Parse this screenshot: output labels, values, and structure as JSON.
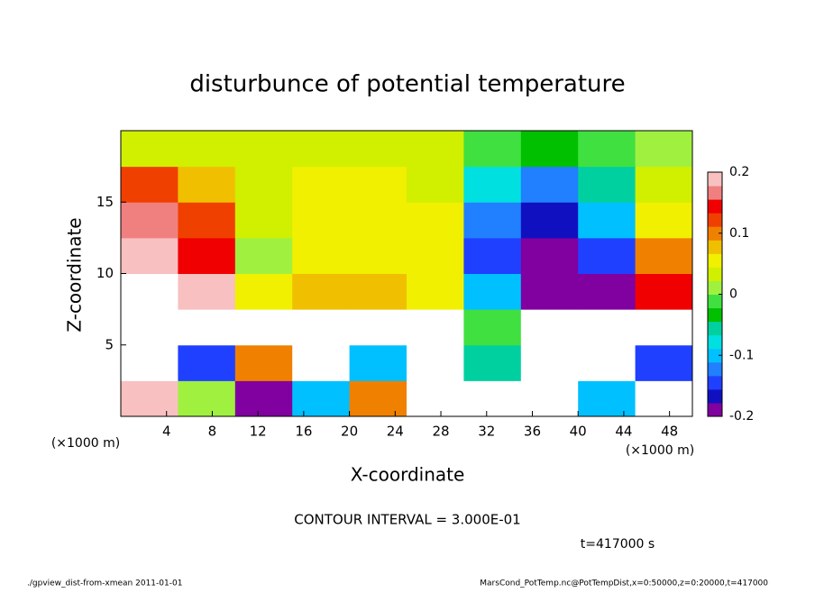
{
  "chart_data": {
    "type": "heatmap",
    "title": "disturbunce of potential temperature",
    "xlabel": "X-coordinate",
    "ylabel": "Z-coordinate",
    "xunit": "(×1000 m)",
    "xlim": [
      0,
      50
    ],
    "ylim": [
      0,
      20
    ],
    "xticks": [
      4,
      8,
      12,
      16,
      20,
      24,
      28,
      32,
      36,
      40,
      44,
      48
    ],
    "yticks": [
      5,
      10,
      15
    ],
    "xbins": [
      0,
      5,
      10,
      15,
      20,
      25,
      30,
      35,
      40,
      45,
      50
    ],
    "ybins": [
      0,
      2.5,
      5,
      7.5,
      10,
      12.5,
      15,
      17.5,
      20
    ],
    "z": [
      [
        0.2,
        0.0,
        -0.2,
        -0.1,
        0.1,
        0.3,
        0.3,
        0.3,
        -0.1,
        0.3
      ],
      [
        0.3,
        -0.15,
        0.1,
        0.3,
        -0.1,
        0.3,
        -0.05,
        0.3,
        0.3,
        -0.15
      ],
      [
        0.3,
        0.3,
        0.3,
        0.3,
        0.3,
        0.3,
        -0.02,
        0.3,
        0.3,
        0.3
      ],
      [
        0.22,
        0.18,
        0.05,
        0.08,
        0.07,
        0.06,
        -0.1,
        -0.22,
        -0.22,
        0.15
      ],
      [
        0.19,
        0.15,
        0.01,
        0.06,
        0.06,
        0.05,
        -0.14,
        -0.22,
        -0.15,
        0.1
      ],
      [
        0.16,
        0.12,
        0.03,
        0.05,
        0.05,
        0.05,
        -0.12,
        -0.17,
        -0.1,
        0.06
      ],
      [
        0.12,
        0.08,
        0.04,
        0.05,
        0.05,
        0.04,
        -0.08,
        -0.12,
        -0.06,
        0.03
      ],
      [
        0.03,
        0.04,
        0.03,
        0.04,
        0.04,
        0.03,
        -0.02,
        -0.04,
        -0.02,
        0.02
      ]
    ],
    "clim": [
      -0.2,
      0.2
    ],
    "cticks": [
      -0.2,
      -0.1,
      0,
      0.1,
      0.2
    ],
    "colormap": [
      "#8000a0",
      "#1010c0",
      "#2040ff",
      "#2080ff",
      "#00c0ff",
      "#00e0e0",
      "#00d0a0",
      "#00c000",
      "#40e040",
      "#a0f040",
      "#d0f000",
      "#f0f000",
      "#f0c000",
      "#f08000",
      "#f04000",
      "#f00000",
      "#f08080",
      "#f8c0c0"
    ],
    "over_color": "#ffffff",
    "annotation": "CONTOUR INTERVAL = 3.000E-01",
    "time": "t=417000 s",
    "footer_left": "./gpview_dist-from-xmean  2011-01-01",
    "footer_right": "MarsCond_PotTemp.nc@PotTempDist,x=0:50000,z=0:20000,t=417000"
  }
}
